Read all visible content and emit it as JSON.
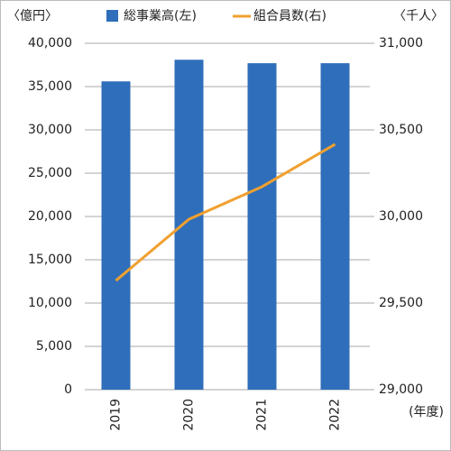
{
  "chart_data": {
    "type": "combo",
    "y_unit_label": "〈億円〉",
    "y2_unit_label": "〈千人〉",
    "x_unit_label": "(年度)",
    "categories": [
      "2019",
      "2020",
      "2021",
      "2022"
    ],
    "series": [
      {
        "name": "総事業高(左)",
        "type": "bar",
        "axis": "y",
        "color": "#2f6eba",
        "values": [
          35600,
          38100,
          37700,
          37700
        ]
      },
      {
        "name": "組合員数(右)",
        "type": "line",
        "axis": "y2",
        "color": "#f0a030",
        "values": [
          29630,
          29984,
          30172,
          30417
        ]
      }
    ],
    "ylim": [
      0,
      40000
    ],
    "yticks": [
      0,
      {
        "value": 5000,
        "label": "5,000"
      },
      {
        "value": 10000,
        "label": "10,000"
      },
      {
        "value": 15000,
        "label": "15,000"
      },
      {
        "value": 20000,
        "label": "20,000"
      },
      {
        "value": 25000,
        "label": "25,000"
      },
      {
        "value": 30000,
        "label": "30,000"
      },
      {
        "value": 35000,
        "label": "35,000"
      },
      {
        "value": 40000,
        "label": "40,000"
      }
    ],
    "y2lim": [
      29000,
      31000
    ],
    "y2ticks": [
      {
        "value": 29000,
        "label": "29,000"
      },
      {
        "value": 29500,
        "label": "29,500"
      },
      {
        "value": 30000,
        "label": "30,000"
      },
      {
        "value": 30500,
        "label": "30,500"
      },
      {
        "value": 31000,
        "label": "31,000"
      }
    ],
    "grid": true
  }
}
